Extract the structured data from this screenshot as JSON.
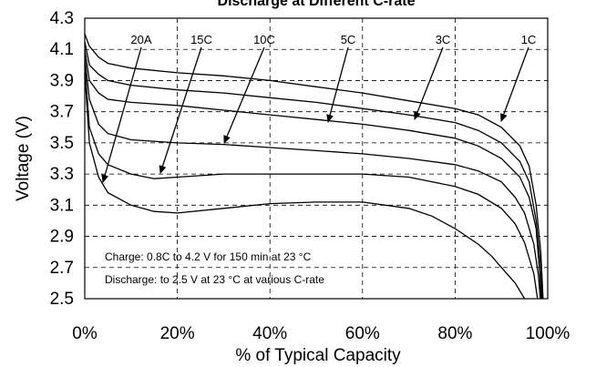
{
  "chart_data": {
    "type": "line",
    "title": "Discharge at Different C-rate",
    "xlabel": "% of Typical Capacity",
    "ylabel": "Voltage (V)",
    "xlim": [
      0,
      100
    ],
    "ylim": [
      2.5,
      4.3
    ],
    "x_ticks": [
      "0%",
      "20%",
      "40%",
      "60%",
      "80%",
      "100%"
    ],
    "y_ticks": [
      "2.5",
      "2.7",
      "2.9",
      "3.1",
      "3.3",
      "3.5",
      "3.7",
      "3.9",
      "4.1",
      "4.3"
    ],
    "grid": true,
    "series": [
      {
        "name": "1C",
        "points": [
          [
            0,
            4.2
          ],
          [
            1,
            4.12
          ],
          [
            3,
            4.05
          ],
          [
            5,
            4.01
          ],
          [
            10,
            3.98
          ],
          [
            20,
            3.95
          ],
          [
            30,
            3.93
          ],
          [
            40,
            3.9
          ],
          [
            50,
            3.86
          ],
          [
            60,
            3.82
          ],
          [
            70,
            3.77
          ],
          [
            80,
            3.72
          ],
          [
            85,
            3.68
          ],
          [
            90,
            3.6
          ],
          [
            94,
            3.48
          ],
          [
            96,
            3.35
          ],
          [
            97.5,
            3.1
          ],
          [
            98.5,
            2.8
          ],
          [
            99,
            2.5
          ]
        ]
      },
      {
        "name": "3C",
        "points": [
          [
            0,
            4.15
          ],
          [
            1,
            4.0
          ],
          [
            3,
            3.94
          ],
          [
            5,
            3.9
          ],
          [
            10,
            3.87
          ],
          [
            20,
            3.84
          ],
          [
            30,
            3.82
          ],
          [
            40,
            3.79
          ],
          [
            50,
            3.76
          ],
          [
            60,
            3.72
          ],
          [
            70,
            3.68
          ],
          [
            80,
            3.63
          ],
          [
            85,
            3.58
          ],
          [
            90,
            3.5
          ],
          [
            94,
            3.38
          ],
          [
            96,
            3.25
          ],
          [
            97.5,
            3.0
          ],
          [
            98.5,
            2.7
          ],
          [
            98.8,
            2.5
          ]
        ]
      },
      {
        "name": "5C",
        "points": [
          [
            0,
            4.1
          ],
          [
            1,
            3.9
          ],
          [
            3,
            3.82
          ],
          [
            5,
            3.78
          ],
          [
            10,
            3.76
          ],
          [
            20,
            3.74
          ],
          [
            30,
            3.71
          ],
          [
            40,
            3.68
          ],
          [
            50,
            3.65
          ],
          [
            60,
            3.62
          ],
          [
            70,
            3.58
          ],
          [
            80,
            3.53
          ],
          [
            85,
            3.48
          ],
          [
            90,
            3.4
          ],
          [
            94,
            3.28
          ],
          [
            96,
            3.15
          ],
          [
            97.5,
            2.95
          ],
          [
            98.3,
            2.65
          ],
          [
            98.6,
            2.5
          ]
        ]
      },
      {
        "name": "10C",
        "points": [
          [
            0,
            4.05
          ],
          [
            1,
            3.78
          ],
          [
            3,
            3.62
          ],
          [
            5,
            3.56
          ],
          [
            10,
            3.52
          ],
          [
            20,
            3.5
          ],
          [
            30,
            3.49
          ],
          [
            40,
            3.47
          ],
          [
            50,
            3.45
          ],
          [
            60,
            3.43
          ],
          [
            70,
            3.4
          ],
          [
            80,
            3.36
          ],
          [
            85,
            3.32
          ],
          [
            90,
            3.25
          ],
          [
            93,
            3.15
          ],
          [
            95,
            3.05
          ],
          [
            97,
            2.85
          ],
          [
            98,
            2.65
          ],
          [
            98.4,
            2.5
          ]
        ]
      },
      {
        "name": "15C",
        "points": [
          [
            0,
            4.0
          ],
          [
            1,
            3.6
          ],
          [
            3,
            3.43
          ],
          [
            5,
            3.36
          ],
          [
            10,
            3.3
          ],
          [
            15,
            3.27
          ],
          [
            20,
            3.28
          ],
          [
            30,
            3.3
          ],
          [
            40,
            3.3
          ],
          [
            50,
            3.3
          ],
          [
            60,
            3.3
          ],
          [
            70,
            3.28
          ],
          [
            80,
            3.22
          ],
          [
            85,
            3.17
          ],
          [
            90,
            3.08
          ],
          [
            93,
            2.98
          ],
          [
            95,
            2.86
          ],
          [
            97,
            2.66
          ],
          [
            97.8,
            2.5
          ]
        ]
      },
      {
        "name": "20A",
        "points": [
          [
            0,
            3.95
          ],
          [
            1,
            3.5
          ],
          [
            3,
            3.28
          ],
          [
            5,
            3.18
          ],
          [
            10,
            3.1
          ],
          [
            15,
            3.06
          ],
          [
            20,
            3.05
          ],
          [
            30,
            3.08
          ],
          [
            40,
            3.11
          ],
          [
            50,
            3.12
          ],
          [
            60,
            3.12
          ],
          [
            70,
            3.08
          ],
          [
            75,
            3.03
          ],
          [
            80,
            2.95
          ],
          [
            85,
            2.85
          ],
          [
            88,
            2.77
          ],
          [
            90,
            2.7
          ],
          [
            93,
            2.6
          ],
          [
            95,
            2.5
          ]
        ]
      }
    ],
    "annotations": {
      "charge_note": "Charge: 0.8C to 4.2 V for 150 min at 23 °C",
      "discharge_note": "Discharge: to 2.5 V at 23 °C at various C-rate"
    }
  }
}
